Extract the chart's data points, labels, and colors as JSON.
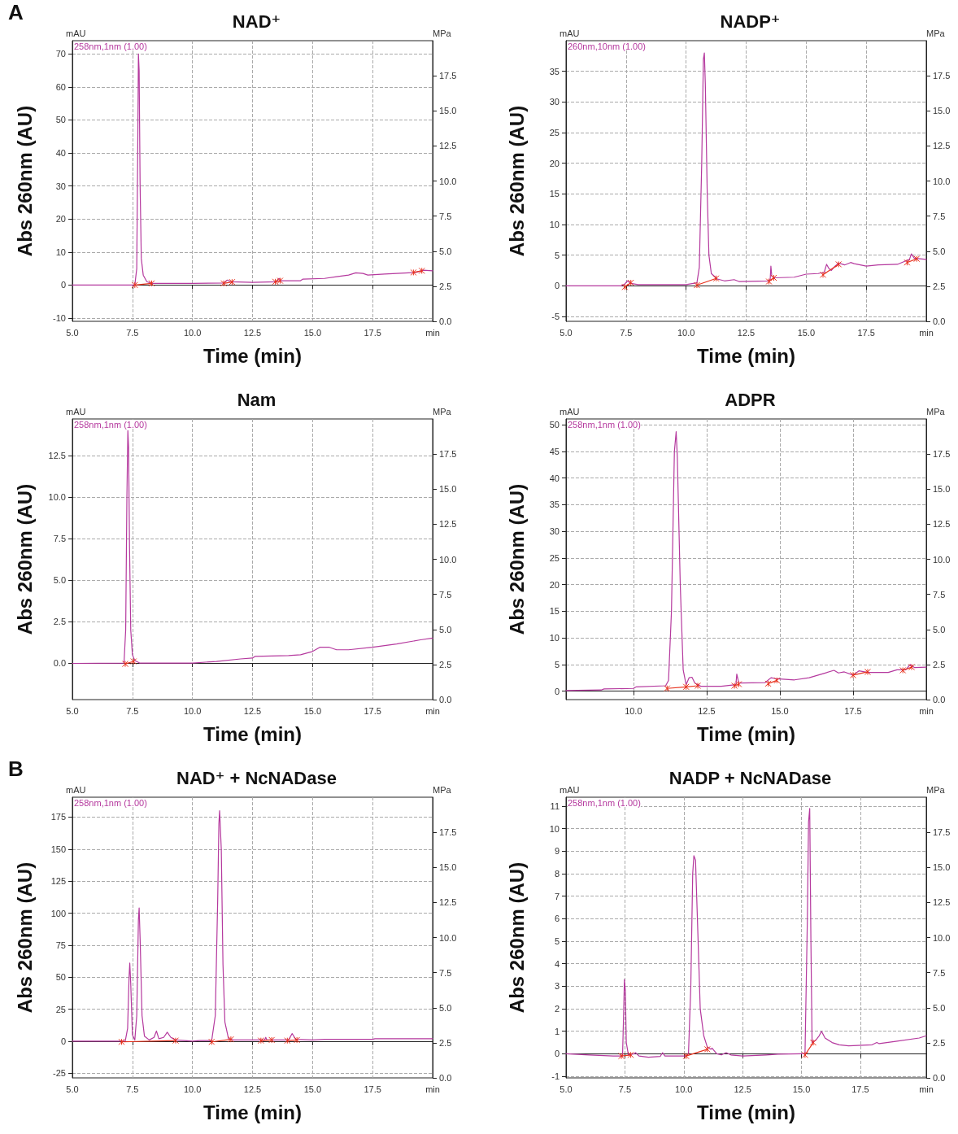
{
  "chart_data": [
    {
      "type": "line",
      "title": "NAD⁺",
      "xlabel": "Time (min)",
      "ylabel": "Abs 260nm (AU)",
      "y2label": "MPa",
      "annotations": [
        "mAU",
        "A"
      ],
      "grid": true,
      "line_style": "solid",
      "marker": "none",
      "xlim": [
        5,
        20
      ],
      "xticks": [
        {
          "value": 5,
          "label": "5.0"
        },
        7.5,
        {
          "value": 10,
          "label": "10.0"
        },
        12.5,
        {
          "value": 15,
          "label": "15.0"
        },
        17.5,
        {
          "value": 20,
          "label": "min"
        }
      ],
      "ylim": [
        -11,
        74
      ],
      "yticks": [
        -10,
        0,
        10,
        20,
        30,
        40,
        50,
        60,
        70
      ],
      "y2lim": [
        0,
        20
      ],
      "y2ticks": [
        {
          "value": 0,
          "label": "0.0"
        },
        2.5,
        {
          "value": 5,
          "label": "5.0"
        },
        7.5,
        {
          "value": 10,
          "label": "10.0"
        },
        12.5,
        {
          "value": 15,
          "label": "15.0"
        },
        17.5
      ],
      "series": [
        {
          "name": "258nm,1nm (1.00)",
          "color": "#b5399e",
          "x": [
            5,
            7.6,
            7.68,
            7.72,
            7.75,
            7.78,
            7.82,
            7.87,
            7.95,
            8.1,
            8.3,
            10,
            11.3,
            11.45,
            11.6,
            12.5,
            13.5,
            13.6,
            13.7,
            14.5,
            14.6,
            15.5,
            16,
            16.5,
            16.8,
            17.1,
            17.3,
            18,
            19,
            19.3,
            19.6,
            20
          ],
          "values": [
            0,
            0,
            5,
            40,
            70,
            65,
            30,
            8,
            3,
            1,
            0.5,
            0.5,
            0.6,
            1.5,
            1,
            0.8,
            1,
            2,
            1.3,
            1.3,
            1.8,
            2,
            2.5,
            3,
            3.7,
            3.5,
            3,
            3.3,
            3.7,
            3.8,
            4.5,
            4.3
          ]
        },
        {
          "color": "#e8321e",
          "marker": "cross",
          "x": [
            7.6,
            8.3,
            null,
            11.3,
            11.65,
            null,
            13.45,
            13.65,
            null,
            19.2,
            19.55
          ],
          "values": [
            0,
            0.5,
            null,
            0.5,
            0.9,
            null,
            1,
            1.3,
            null,
            3.8,
            4.3
          ]
        }
      ]
    },
    {
      "type": "line",
      "title": "NADP⁺",
      "xlabel": "Time (min)",
      "ylabel": "Abs 260nm (AU)",
      "y2label": "MPa",
      "annotations": [
        "mAU"
      ],
      "grid": true,
      "line_style": "solid",
      "marker": "none",
      "xlim": [
        5,
        20
      ],
      "xticks": [
        {
          "value": 5,
          "label": "5.0"
        },
        7.5,
        {
          "value": 10,
          "label": "10.0"
        },
        12.5,
        {
          "value": 15,
          "label": "15.0"
        },
        17.5,
        {
          "value": 20,
          "label": "min"
        }
      ],
      "ylim": [
        -5.8,
        40
      ],
      "yticks": [
        -5,
        0,
        5,
        10,
        15,
        20,
        25,
        30,
        35
      ],
      "y2lim": [
        0,
        20
      ],
      "y2ticks": [
        {
          "value": 0,
          "label": "0.0"
        },
        2.5,
        {
          "value": 5,
          "label": "5.0"
        },
        7.5,
        {
          "value": 10,
          "label": "10.0"
        },
        12.5,
        {
          "value": 15,
          "label": "15.0"
        },
        17.5
      ],
      "series": [
        {
          "name": "260nm,10nm (1.00)",
          "color": "#b5399e",
          "x": [
            5,
            7.3,
            7.45,
            7.55,
            7.7,
            8,
            10,
            10.45,
            10.55,
            10.65,
            10.72,
            10.76,
            10.8,
            10.88,
            10.95,
            11.05,
            11.3,
            11.6,
            12,
            12.2,
            13.4,
            13.5,
            13.53,
            13.57,
            13.7,
            14.5,
            15,
            15.5,
            15.75,
            15.85,
            15.95,
            16.05,
            16.2,
            16.35,
            16.6,
            16.85,
            17,
            17.5,
            18,
            18.8,
            19.1,
            19.3,
            19.38,
            19.5,
            20
          ],
          "values": [
            0,
            0,
            0.3,
            0.8,
            0.4,
            0.2,
            0.2,
            0.5,
            3,
            20,
            37,
            38,
            33,
            15,
            5,
            2,
            1.1,
            0.8,
            1,
            0.7,
            0.8,
            1,
            3.2,
            1.5,
            1.3,
            1.4,
            1.9,
            2,
            2.2,
            3.5,
            2.8,
            2.5,
            3.2,
            3.7,
            3.4,
            3.8,
            3.6,
            3.2,
            3.4,
            3.5,
            4,
            4.3,
            5.2,
            4.5,
            4.3
          ]
        },
        {
          "color": "#e8321e",
          "marker": "cross",
          "x": [
            7.45,
            7.7,
            null,
            10.45,
            11.25,
            null,
            13.45,
            13.65,
            null,
            15.7,
            16.35,
            null,
            19.2,
            19.6
          ],
          "values": [
            -0.2,
            0.5,
            null,
            0.1,
            1.2,
            null,
            0.7,
            1.3,
            null,
            1.8,
            3.5,
            null,
            3.8,
            4.4
          ]
        }
      ]
    },
    {
      "type": "line",
      "title": "Nam",
      "xlabel": "Time (min)",
      "ylabel": "Abs 260nm (AU)",
      "y2label": "MPa",
      "annotations": [
        "mAU"
      ],
      "grid": true,
      "line_style": "solid",
      "marker": "none",
      "xlim": [
        5,
        20
      ],
      "xticks": [
        {
          "value": 5,
          "label": "5.0"
        },
        7.5,
        {
          "value": 10,
          "label": "10.0"
        },
        12.5,
        {
          "value": 15,
          "label": "15.0"
        },
        17.5,
        {
          "value": 20,
          "label": "min"
        }
      ],
      "ylim": [
        -2.2,
        14.7
      ],
      "yticks": [
        {
          "value": 0,
          "label": "0.0"
        },
        2.5,
        {
          "value": 5,
          "label": "5.0"
        },
        7.5,
        {
          "value": 10,
          "label": "10.0"
        },
        12.5
      ],
      "y2lim": [
        0,
        20
      ],
      "y2ticks": [
        {
          "value": 0,
          "label": "0.0"
        },
        2.5,
        {
          "value": 5,
          "label": "5.0"
        },
        7.5,
        {
          "value": 10,
          "label": "10.0"
        },
        12.5,
        {
          "value": 15,
          "label": "15.0"
        },
        17.5
      ],
      "series": [
        {
          "name": "258nm,1nm (1.00)",
          "color": "#b5399e",
          "x": [
            5,
            7.15,
            7.22,
            7.27,
            7.31,
            7.34,
            7.38,
            7.43,
            7.5,
            7.6,
            7.8,
            10,
            11,
            12,
            12.5,
            12.6,
            14,
            14.5,
            15,
            15.3,
            15.7,
            16,
            16.5,
            17.5,
            18.5,
            19.5,
            20
          ],
          "values": [
            -0.02,
            0,
            2,
            10,
            14,
            13,
            7,
            2,
            0.5,
            0.15,
            0,
            0,
            0.1,
            0.25,
            0.3,
            0.4,
            0.45,
            0.5,
            0.7,
            0.95,
            0.95,
            0.8,
            0.8,
            0.95,
            1.15,
            1.4,
            1.5
          ]
        },
        {
          "color": "#e8321e",
          "marker": "cross",
          "x": [
            7.2,
            7.55
          ],
          "values": [
            -0.05,
            0.1
          ]
        }
      ]
    },
    {
      "type": "line",
      "title": "ADPR",
      "xlabel": "Time (min)",
      "ylabel": "Abs 260nm (AU)",
      "y2label": "MPa",
      "annotations": [
        "mAU"
      ],
      "grid": true,
      "line_style": "solid",
      "marker": "none",
      "xlim": [
        7.7,
        20
      ],
      "xticks": [
        {
          "value": 10,
          "label": "10.0"
        },
        12.5,
        {
          "value": 15,
          "label": "15.0"
        },
        17.5,
        {
          "value": 20,
          "label": "min"
        }
      ],
      "ylim": [
        -1.6,
        51.1
      ],
      "yticks": [
        0,
        5,
        10,
        15,
        20,
        25,
        30,
        35,
        40,
        45,
        50
      ],
      "y2lim": [
        0,
        20
      ],
      "y2ticks": [
        {
          "value": 0,
          "label": "0.0"
        },
        2.5,
        {
          "value": 5,
          "label": "5.0"
        },
        7.5,
        {
          "value": 10,
          "label": "10.0"
        },
        12.5,
        {
          "value": 15,
          "label": "15.0"
        },
        17.5
      ],
      "series": [
        {
          "name": "258nm,1nm (1.00)",
          "color": "#b5399e",
          "x": [
            7.7,
            8.9,
            9,
            10,
            10.1,
            11.1,
            11.2,
            11.3,
            11.4,
            11.46,
            11.5,
            11.6,
            11.7,
            11.8,
            11.9,
            12,
            12.1,
            12.3,
            13,
            13.5,
            13.53,
            13.6,
            14.5,
            14.7,
            14.9,
            15.5,
            16,
            16.5,
            16.85,
            17,
            17.2,
            17.5,
            17.7,
            18,
            18.7,
            19,
            19.3,
            19.45,
            19.6,
            20
          ],
          "values": [
            0.1,
            0.2,
            0.4,
            0.5,
            0.8,
            1,
            2,
            15,
            45,
            48.7,
            44,
            20,
            4,
            1.2,
            2.5,
            2.6,
            1.5,
            0.9,
            0.9,
            1.2,
            3.2,
            1.5,
            1.6,
            2.5,
            2.3,
            2.1,
            2.5,
            3.3,
            3.9,
            3.4,
            3.6,
            3,
            3.8,
            3.5,
            3.5,
            4,
            4,
            5,
            4.4,
            4.5
          ]
        },
        {
          "color": "#e8321e",
          "marker": "cross",
          "x": [
            11.15,
            11.8,
            12.2,
            null,
            13.45,
            13.6,
            null,
            14.6,
            14.9,
            null,
            17.5,
            18,
            null,
            19.2,
            19.5
          ],
          "values": [
            0.5,
            0.8,
            1,
            null,
            1,
            1.3,
            null,
            1.4,
            2,
            null,
            3,
            3.6,
            null,
            3.9,
            4.5
          ]
        }
      ]
    },
    {
      "type": "line",
      "title": "NAD⁺ + NcNADase",
      "xlabel": "Time (min)",
      "ylabel": "Abs 260nm (AU)",
      "y2label": "MPa",
      "annotations": [
        "mAU",
        "B"
      ],
      "grid": true,
      "line_style": "solid",
      "marker": "none",
      "xlim": [
        5,
        20
      ],
      "xticks": [
        {
          "value": 5,
          "label": "5.0"
        },
        7.5,
        {
          "value": 10,
          "label": "10.0"
        },
        12.5,
        {
          "value": 15,
          "label": "15.0"
        },
        17.5,
        {
          "value": 20,
          "label": "min"
        }
      ],
      "ylim": [
        -28.6,
        190.5
      ],
      "yticks": [
        -25,
        0,
        25,
        50,
        75,
        100,
        125,
        150,
        175
      ],
      "y2lim": [
        0,
        20
      ],
      "y2ticks": [
        {
          "value": 0,
          "label": "0.0"
        },
        2.5,
        {
          "value": 5,
          "label": "5.0"
        },
        7.5,
        {
          "value": 10,
          "label": "10.0"
        },
        12.5,
        {
          "value": 15,
          "label": "15.0"
        },
        17.5
      ],
      "series": [
        {
          "name": "258nm,1nm (1.00)",
          "color": "#b5399e",
          "x": [
            5,
            7.2,
            7.3,
            7.36,
            7.39,
            7.43,
            7.5,
            7.6,
            7.68,
            7.75,
            7.78,
            7.82,
            7.9,
            8,
            8.2,
            8.4,
            8.5,
            8.6,
            8.8,
            8.95,
            9.1,
            9.3,
            10,
            10.3,
            10.8,
            10.95,
            11.05,
            11.1,
            11.13,
            11.2,
            11.27,
            11.35,
            11.5,
            11.7,
            13,
            13.05,
            13.1,
            14,
            14.15,
            14.3,
            15,
            15.5,
            17.5,
            17.6,
            20
          ],
          "values": [
            0,
            0,
            10,
            50,
            61,
            45,
            5,
            1,
            20,
            95,
            104,
            80,
            20,
            4,
            1,
            3,
            8,
            2,
            3,
            7,
            3,
            1,
            0,
            0.5,
            0.5,
            20,
            110,
            170,
            180,
            150,
            60,
            15,
            2,
            1,
            1,
            3,
            1,
            1,
            6,
            1.5,
            1,
            1.5,
            1.5,
            2,
            2
          ]
        },
        {
          "color": "#e8321e",
          "marker": "cross",
          "x": [
            7.05,
            9.3,
            null,
            10.8,
            11.6,
            null,
            12.85,
            13.3,
            null,
            13.95,
            14.35
          ],
          "values": [
            -0.5,
            0.5,
            null,
            -0.5,
            1.5,
            null,
            0.5,
            1,
            null,
            0.5,
            1
          ]
        }
      ]
    },
    {
      "type": "line",
      "title": "NADP + NcNADase",
      "xlabel": "Time (min)",
      "ylabel": "Abs 260nm (AU)",
      "y2label": "MPa",
      "annotations": [
        "mAU"
      ],
      "grid": true,
      "line_style": "solid",
      "marker": "none",
      "xlim": [
        5,
        20.3
      ],
      "xticks": [
        {
          "value": 5,
          "label": "5.0"
        },
        7.5,
        {
          "value": 10,
          "label": "10.0"
        },
        12.5,
        {
          "value": 15,
          "label": "15.0"
        },
        17.5,
        {
          "value": 20.3,
          "label": "min"
        }
      ],
      "ylim": [
        -1.07,
        11.4
      ],
      "yticks": [
        -1,
        0,
        1,
        2,
        3,
        4,
        5,
        6,
        7,
        8,
        9,
        10,
        11
      ],
      "y2lim": [
        0,
        20
      ],
      "y2ticks": [
        {
          "value": 0,
          "label": "0.0"
        },
        2.5,
        {
          "value": 5,
          "label": "5.0"
        },
        7.5,
        {
          "value": 10,
          "label": "10.0"
        },
        12.5,
        {
          "value": 15,
          "label": "15.0"
        },
        17.5
      ],
      "series": [
        {
          "name": "258nm,1nm (1.00)",
          "color": "#b5399e",
          "x": [
            5,
            6,
            7,
            7.4,
            7.44,
            7.48,
            7.52,
            7.56,
            7.65,
            7.9,
            7.95,
            8.1,
            8.5,
            9,
            9.1,
            9.2,
            10.1,
            10.2,
            10.3,
            10.38,
            10.43,
            10.5,
            10.58,
            10.7,
            10.85,
            11,
            11.15,
            11.2,
            11.4,
            11.6,
            11.8,
            12,
            12.5,
            13.5,
            14,
            15,
            15.15,
            15.25,
            15.3,
            15.35,
            15.4,
            15.45,
            15.6,
            15.75,
            15.85,
            16,
            16.3,
            16.6,
            17,
            18,
            18.2,
            18.3,
            19,
            20,
            20.3
          ],
          "values": [
            0,
            -0.05,
            -0.1,
            -0.1,
            1.5,
            3.3,
            2.8,
            0.5,
            -0.05,
            0,
            0.05,
            -0.1,
            -0.15,
            -0.12,
            0.05,
            -0.1,
            -0.1,
            0,
            3,
            8,
            8.8,
            8.6,
            6,
            2,
            0.8,
            0.3,
            0.2,
            0.25,
            0,
            -0.05,
            0.05,
            -0.05,
            -0.1,
            -0.05,
            -0.02,
            0,
            0,
            6,
            10.3,
            10.9,
            5,
            0.5,
            0.6,
            0.8,
            1,
            0.7,
            0.5,
            0.4,
            0.35,
            0.4,
            0.5,
            0.45,
            0.55,
            0.7,
            0.8
          ]
        },
        {
          "color": "#e8321e",
          "marker": "cross",
          "x": [
            7.35,
            7.75,
            null,
            10.1,
            11,
            null,
            15.15,
            15.5
          ],
          "values": [
            -0.1,
            -0.05,
            null,
            -0.1,
            0.2,
            null,
            -0.05,
            0.5
          ]
        }
      ]
    }
  ]
}
